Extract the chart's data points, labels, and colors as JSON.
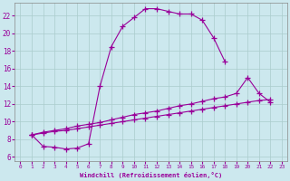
{
  "xlabel": "Windchill (Refroidissement éolien,°C)",
  "background_color": "#cce8ee",
  "grid_color": "#aacccc",
  "line_color": "#990099",
  "xlim": [
    -0.5,
    23.5
  ],
  "ylim": [
    5.5,
    23.5
  ],
  "xticks": [
    0,
    1,
    2,
    3,
    4,
    5,
    6,
    7,
    8,
    9,
    10,
    11,
    12,
    13,
    14,
    15,
    16,
    17,
    18,
    19,
    20,
    21,
    22,
    23
  ],
  "yticks": [
    6,
    8,
    10,
    12,
    14,
    16,
    18,
    20,
    22
  ],
  "curve1_x": [
    1,
    2,
    3,
    4,
    5,
    6,
    7,
    8,
    9,
    10,
    11,
    12,
    13,
    14,
    15,
    16,
    17,
    18
  ],
  "curve1_y": [
    8.5,
    7.2,
    7.1,
    6.9,
    7.0,
    7.5,
    14.0,
    18.5,
    20.8,
    21.8,
    22.8,
    22.8,
    22.5,
    22.2,
    22.2,
    21.5,
    19.5,
    16.8
  ],
  "curve2_x": [
    1,
    2,
    3,
    4,
    5,
    6,
    7,
    8,
    9,
    10,
    11,
    12,
    13,
    14,
    15,
    16,
    17,
    18,
    19,
    20,
    21,
    22
  ],
  "curve2_y": [
    8.5,
    8.8,
    9.0,
    9.2,
    9.5,
    9.7,
    9.9,
    10.2,
    10.5,
    10.8,
    11.0,
    11.2,
    11.5,
    11.8,
    12.0,
    12.3,
    12.6,
    12.8,
    13.2,
    15.0,
    13.2,
    12.2
  ],
  "curve3_x": [
    1,
    2,
    3,
    4,
    5,
    6,
    7,
    8,
    9,
    10,
    11,
    12,
    13,
    14,
    15,
    16,
    17,
    18,
    19,
    20,
    21,
    22
  ],
  "curve3_y": [
    8.5,
    8.7,
    8.9,
    9.0,
    9.2,
    9.4,
    9.6,
    9.8,
    10.0,
    10.2,
    10.4,
    10.6,
    10.8,
    11.0,
    11.2,
    11.4,
    11.6,
    11.8,
    12.0,
    12.2,
    12.4,
    12.5
  ]
}
